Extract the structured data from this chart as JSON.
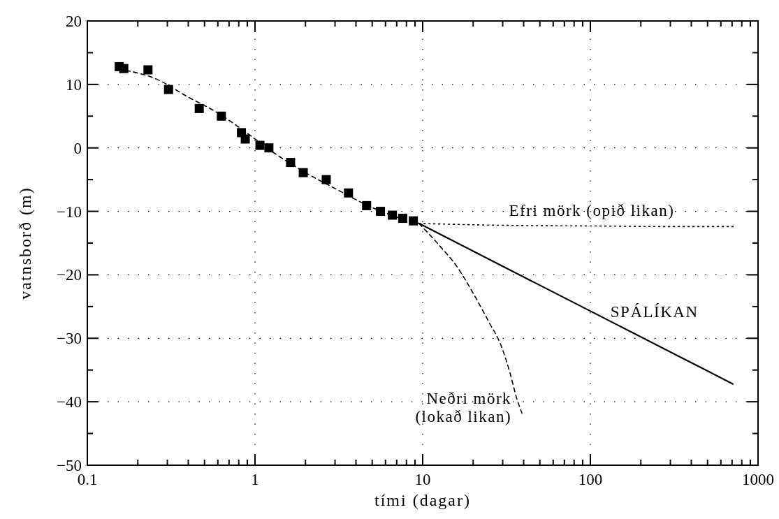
{
  "chart_data": {
    "type": "scatter",
    "xlabel": "tími (dagar)",
    "ylabel": "vatnsborð (m)",
    "log": "x",
    "grid": true,
    "xlim": [
      0.1,
      1000
    ],
    "ylim": [
      -50,
      20
    ],
    "xticks": [
      0.1,
      {
        "value": 0.2,
        "label": null
      },
      {
        "value": 0.3,
        "label": null
      },
      {
        "value": 0.4,
        "label": null
      },
      {
        "value": 0.5,
        "label": null
      },
      {
        "value": 0.6,
        "label": null
      },
      {
        "value": 0.7,
        "label": null
      },
      {
        "value": 0.8,
        "label": null
      },
      {
        "value": 0.9,
        "label": null
      },
      1,
      {
        "value": 2,
        "label": null
      },
      {
        "value": 3,
        "label": null
      },
      {
        "value": 4,
        "label": null
      },
      {
        "value": 5,
        "label": null
      },
      {
        "value": 6,
        "label": null
      },
      {
        "value": 7,
        "label": null
      },
      {
        "value": 8,
        "label": null
      },
      {
        "value": 9,
        "label": null
      },
      10,
      {
        "value": 20,
        "label": null
      },
      {
        "value": 30,
        "label": null
      },
      {
        "value": 40,
        "label": null
      },
      {
        "value": 50,
        "label": null
      },
      {
        "value": 60,
        "label": null
      },
      {
        "value": 70,
        "label": null
      },
      {
        "value": 80,
        "label": null
      },
      {
        "value": 90,
        "label": null
      },
      100,
      {
        "value": 200,
        "label": null
      },
      {
        "value": 300,
        "label": null
      },
      {
        "value": 400,
        "label": null
      },
      {
        "value": 500,
        "label": null
      },
      {
        "value": 600,
        "label": null
      },
      {
        "value": 700,
        "label": null
      },
      {
        "value": 800,
        "label": null
      },
      {
        "value": 900,
        "label": null
      },
      1000
    ],
    "yticks": [
      -50,
      {
        "value": -45,
        "label": null
      },
      -40,
      {
        "value": -35,
        "label": null
      },
      -30,
      {
        "value": -25,
        "label": null
      },
      -20,
      {
        "value": -15,
        "label": null
      },
      -10,
      {
        "value": -5,
        "label": null
      },
      0,
      {
        "value": 5,
        "label": null
      },
      10,
      {
        "value": 15,
        "label": null
      },
      20
    ],
    "series": [
      {
        "type": "line",
        "color": "#000000",
        "line_style": "dashed",
        "x": [
          0.17,
          0.25,
          0.4,
          0.6,
          0.9,
          1.3,
          2,
          3,
          5,
          7,
          9.5
        ],
        "values": [
          12.2,
          11,
          8,
          5.5,
          2.3,
          -0.8,
          -3.9,
          -6.4,
          -9.4,
          -10.9,
          -11.9
        ]
      },
      {
        "type": "line",
        "name": "Efri mörk (opið likan)",
        "color": "#000000",
        "line_style": "dotted",
        "x": [
          9.5,
          30,
          100,
          300,
          710
        ],
        "values": [
          -11.9,
          -12.2,
          -12.3,
          -12.4,
          -12.4
        ]
      },
      {
        "type": "line",
        "name": "SPÁLÍKAN",
        "color": "#000000",
        "line_style": "solid",
        "x": [
          9.5,
          708
        ],
        "values": [
          -11.9,
          -37.2
        ]
      },
      {
        "type": "line",
        "name": "Neðri mörk\n(lokað likan)",
        "color": "#000000",
        "line_style": "dashed",
        "x": [
          9.5,
          12.6,
          16,
          19.9,
          24.9,
          29.3,
          33.2,
          36.5,
          39.1
        ],
        "values": [
          -11.9,
          -15.4,
          -18.7,
          -22.8,
          -27.5,
          -31.1,
          -35.5,
          -39.6,
          -41.8
        ]
      },
      {
        "marker": "square",
        "color": "#000000",
        "x": [
          0.155,
          0.165,
          0.23,
          0.305,
          0.465,
          0.63,
          0.83,
          0.875,
          1.07,
          1.21,
          1.63,
          1.94,
          2.66,
          3.61,
          4.63,
          5.6,
          6.6,
          7.6,
          8.8
        ],
        "values": [
          12.8,
          12.5,
          12.3,
          9.2,
          6.2,
          5.0,
          2.4,
          1.4,
          0.4,
          0,
          -2.3,
          -3.9,
          -5.0,
          -7.1,
          -9.1,
          -10.0,
          -10.6,
          -11.1,
          -11.5
        ]
      }
    ]
  }
}
